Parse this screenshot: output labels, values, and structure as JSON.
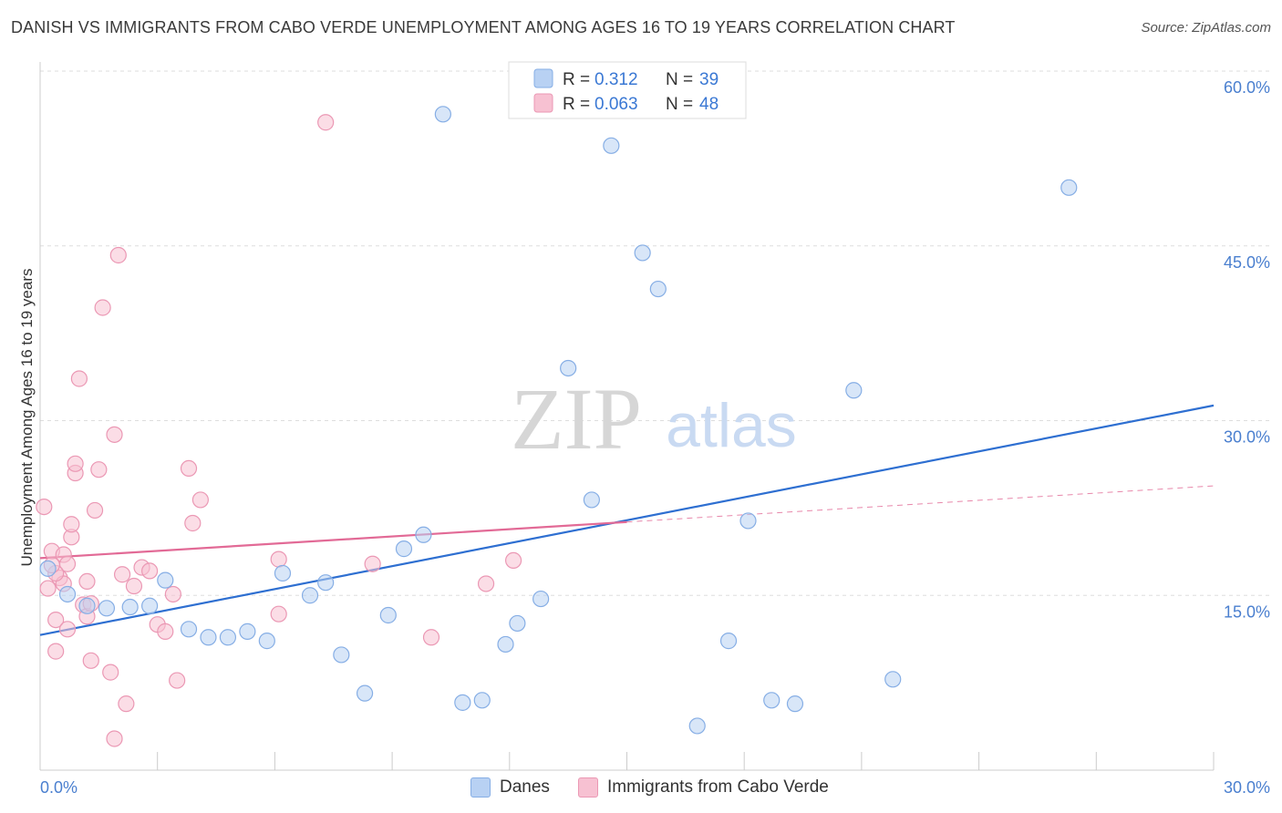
{
  "title": "DANISH VS IMMIGRANTS FROM CABO VERDE UNEMPLOYMENT AMONG AGES 16 TO 19 YEARS CORRELATION CHART",
  "source": "Source: ZipAtlas.com",
  "watermark": {
    "zip": "ZIP",
    "atlas": "atlas"
  },
  "colors": {
    "danes_fill": "#b8d1f3",
    "danes_stroke": "#86aee5",
    "danes_line": "#2e6fd1",
    "cabo_fill": "#f7c1d2",
    "cabo_stroke": "#eb98b4",
    "cabo_line": "#e26a96",
    "axis_text": "#4a7fcf",
    "grid": "#dddddd"
  },
  "legend": {
    "r_label": "R =",
    "n_label": "N =",
    "rows": [
      {
        "series": "Danes",
        "r": "0.312",
        "n": "39"
      },
      {
        "series": "Immigrants from Cabo Verde",
        "r": "0.063",
        "n": "48"
      }
    ]
  },
  "chart_data": {
    "type": "scatter",
    "title": "DANISH VS IMMIGRANTS FROM CABO VERDE UNEMPLOYMENT AMONG AGES 16 TO 19 YEARS CORRELATION CHART",
    "xlabel": "",
    "ylabel": "Unemployment Among Ages 16 to 19 years",
    "xlim": [
      0,
      30
    ],
    "ylim": [
      0,
      60
    ],
    "x_tick_labels": [
      {
        "value": 0,
        "label": "0.0%"
      },
      {
        "value": 30,
        "label": "30.0%"
      }
    ],
    "y_tick_labels": [
      {
        "value": 15,
        "label": "15.0%"
      },
      {
        "value": 30,
        "label": "30.0%"
      },
      {
        "value": 45,
        "label": "45.0%"
      },
      {
        "value": 60,
        "label": "60.0%"
      }
    ],
    "grid": true,
    "legend_position": "top-center",
    "series": [
      {
        "name": "Danes",
        "points": [
          [
            0.2,
            17.3
          ],
          [
            0.7,
            15.1
          ],
          [
            1.2,
            14.1
          ],
          [
            1.7,
            13.9
          ],
          [
            2.3,
            14.0
          ],
          [
            2.8,
            14.1
          ],
          [
            3.2,
            16.3
          ],
          [
            3.8,
            12.1
          ],
          [
            4.3,
            11.4
          ],
          [
            4.8,
            11.4
          ],
          [
            5.3,
            11.9
          ],
          [
            5.8,
            11.1
          ],
          [
            6.2,
            16.9
          ],
          [
            6.9,
            15.0
          ],
          [
            7.3,
            16.1
          ],
          [
            7.7,
            9.9
          ],
          [
            8.3,
            6.6
          ],
          [
            8.9,
            13.3
          ],
          [
            9.3,
            19.0
          ],
          [
            9.8,
            20.2
          ],
          [
            10.3,
            56.3
          ],
          [
            10.8,
            5.8
          ],
          [
            11.3,
            6.0
          ],
          [
            11.9,
            10.8
          ],
          [
            12.2,
            12.6
          ],
          [
            12.8,
            14.7
          ],
          [
            13.5,
            34.5
          ],
          [
            14.1,
            23.2
          ],
          [
            14.6,
            53.6
          ],
          [
            15.4,
            44.4
          ],
          [
            15.8,
            41.3
          ],
          [
            16.8,
            3.8
          ],
          [
            17.6,
            11.1
          ],
          [
            18.1,
            21.4
          ],
          [
            18.7,
            6.0
          ],
          [
            19.3,
            5.7
          ],
          [
            20.8,
            32.6
          ],
          [
            21.8,
            7.8
          ],
          [
            26.3,
            50.0
          ]
        ],
        "trend": {
          "x": [
            0,
            30
          ],
          "y": [
            11.6,
            31.3
          ]
        }
      },
      {
        "name": "Immigrants from Cabo Verde",
        "points": [
          [
            0.1,
            22.6
          ],
          [
            0.2,
            15.6
          ],
          [
            0.3,
            18.8
          ],
          [
            0.4,
            10.2
          ],
          [
            0.4,
            12.9
          ],
          [
            0.5,
            16.5
          ],
          [
            0.6,
            16.0
          ],
          [
            0.6,
            18.5
          ],
          [
            0.7,
            12.1
          ],
          [
            0.7,
            17.7
          ],
          [
            0.8,
            20.0
          ],
          [
            0.8,
            21.1
          ],
          [
            0.9,
            25.5
          ],
          [
            0.9,
            26.3
          ],
          [
            1.0,
            33.6
          ],
          [
            1.1,
            14.2
          ],
          [
            1.2,
            16.2
          ],
          [
            1.2,
            13.2
          ],
          [
            1.3,
            14.3
          ],
          [
            1.3,
            9.4
          ],
          [
            1.4,
            22.3
          ],
          [
            1.5,
            25.8
          ],
          [
            1.6,
            39.7
          ],
          [
            1.8,
            8.4
          ],
          [
            1.9,
            28.8
          ],
          [
            2.0,
            44.2
          ],
          [
            2.1,
            16.8
          ],
          [
            2.2,
            5.7
          ],
          [
            2.4,
            15.8
          ],
          [
            2.6,
            17.4
          ],
          [
            2.8,
            17.1
          ],
          [
            3.0,
            12.5
          ],
          [
            3.2,
            11.9
          ],
          [
            3.4,
            15.1
          ],
          [
            3.5,
            7.7
          ],
          [
            3.8,
            25.9
          ],
          [
            3.9,
            21.2
          ],
          [
            4.1,
            23.2
          ],
          [
            6.1,
            18.1
          ],
          [
            6.1,
            13.4
          ],
          [
            7.3,
            55.6
          ],
          [
            8.5,
            17.7
          ],
          [
            10.0,
            11.4
          ],
          [
            11.4,
            16.0
          ],
          [
            12.1,
            18.0
          ],
          [
            1.9,
            2.7
          ],
          [
            0.4,
            16.9
          ],
          [
            0.3,
            17.6
          ]
        ],
        "trend_solid": {
          "x": [
            0,
            15
          ],
          "y": [
            18.2,
            21.3
          ]
        },
        "trend_dashed": {
          "x": [
            15,
            30
          ],
          "y": [
            21.3,
            24.4
          ]
        }
      }
    ]
  }
}
